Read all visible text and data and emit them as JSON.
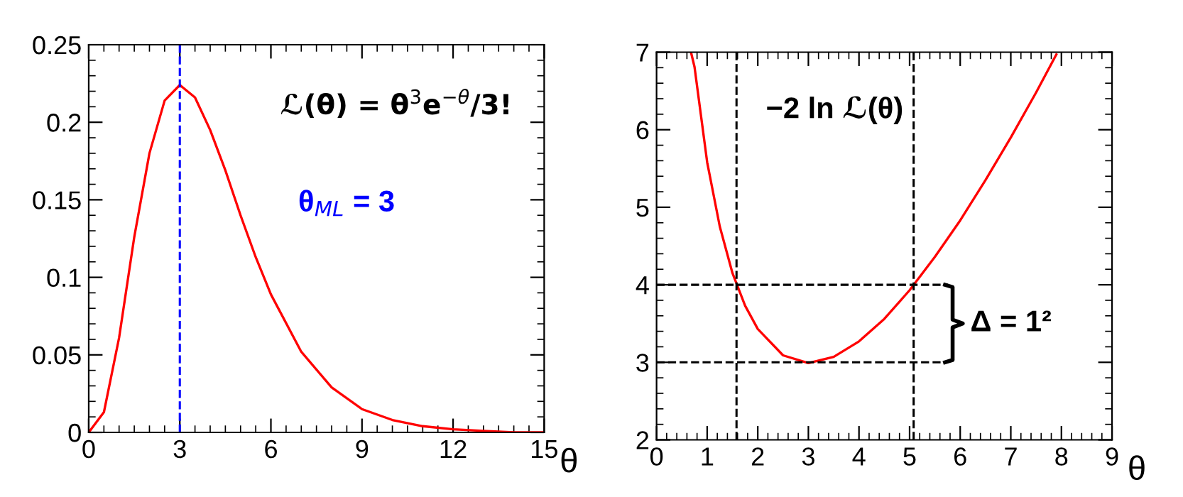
{
  "chart_data": [
    {
      "type": "line",
      "xlabel": "θ",
      "series": [
        {
          "color": "#ff0000",
          "x": [
            0,
            0.5,
            1,
            1.5,
            2,
            2.5,
            3,
            3.5,
            4,
            4.5,
            5,
            5.5,
            6,
            7,
            8,
            9,
            10,
            11,
            12,
            13,
            14,
            15
          ],
          "values": [
            0,
            0.013,
            0.061,
            0.126,
            0.18,
            0.214,
            0.224,
            0.216,
            0.195,
            0.169,
            0.14,
            0.113,
            0.089,
            0.052,
            0.029,
            0.015,
            0.008,
            0.004,
            0.002,
            0.001,
            0,
            0
          ]
        }
      ],
      "xlim": [
        0,
        15
      ],
      "xticks": [
        0,
        3,
        6,
        9,
        12,
        15
      ],
      "ylim": [
        0,
        0.25
      ],
      "yticks": [
        0,
        0.05,
        0.1,
        0.15,
        0.2,
        0.25
      ],
      "ref_lines": [
        {
          "axis": "x",
          "value": 3,
          "label": "θ$_{ML}$ = 3",
          "color": "#0000ff",
          "line_style": "dashed"
        }
      ],
      "annotations": [
        "ℒ(θ) = θ$^{3}$e$^{−θ}$/3!"
      ],
      "grid": false,
      "legend": false,
      "marker": "none",
      "line_style": "solid"
    },
    {
      "type": "line",
      "xlabel": "θ",
      "series": [
        {
          "color": "#ff0000",
          "x": [
            0.68,
            0.75,
            1,
            1.25,
            1.5,
            1.75,
            2,
            2.5,
            3,
            3.5,
            4,
            4.5,
            5,
            5.5,
            6,
            6.5,
            7,
            7.5,
            7.9
          ],
          "values": [
            7,
            6.81,
            5.58,
            4.75,
            4.15,
            3.73,
            3.43,
            3.09,
            2.99,
            3.07,
            3.27,
            3.56,
            3.93,
            4.36,
            4.83,
            5.35,
            5.9,
            6.48,
            6.97
          ]
        }
      ],
      "xlim": [
        0,
        9
      ],
      "xticks": [
        0,
        1,
        2,
        3,
        4,
        5,
        6,
        7,
        8,
        9
      ],
      "ylim": [
        2,
        7
      ],
      "yticks": [
        2,
        3,
        4,
        5,
        6,
        7
      ],
      "ref_lines": [
        {
          "axis": "x",
          "value": 1.58,
          "color": "#000000",
          "line_style": "dashed"
        },
        {
          "axis": "x",
          "value": 5.08,
          "color": "#000000",
          "line_style": "dashed"
        },
        {
          "axis": "y",
          "value": 3,
          "color": "#000000",
          "line_style": "dashed"
        },
        {
          "axis": "y",
          "value": 4,
          "color": "#000000",
          "line_style": "dashed"
        }
      ],
      "annotations": [
        "−2 ln ℒ(θ)",
        "Δ = 1²"
      ],
      "grid": false,
      "legend": false,
      "marker": "none",
      "line_style": "solid"
    }
  ]
}
